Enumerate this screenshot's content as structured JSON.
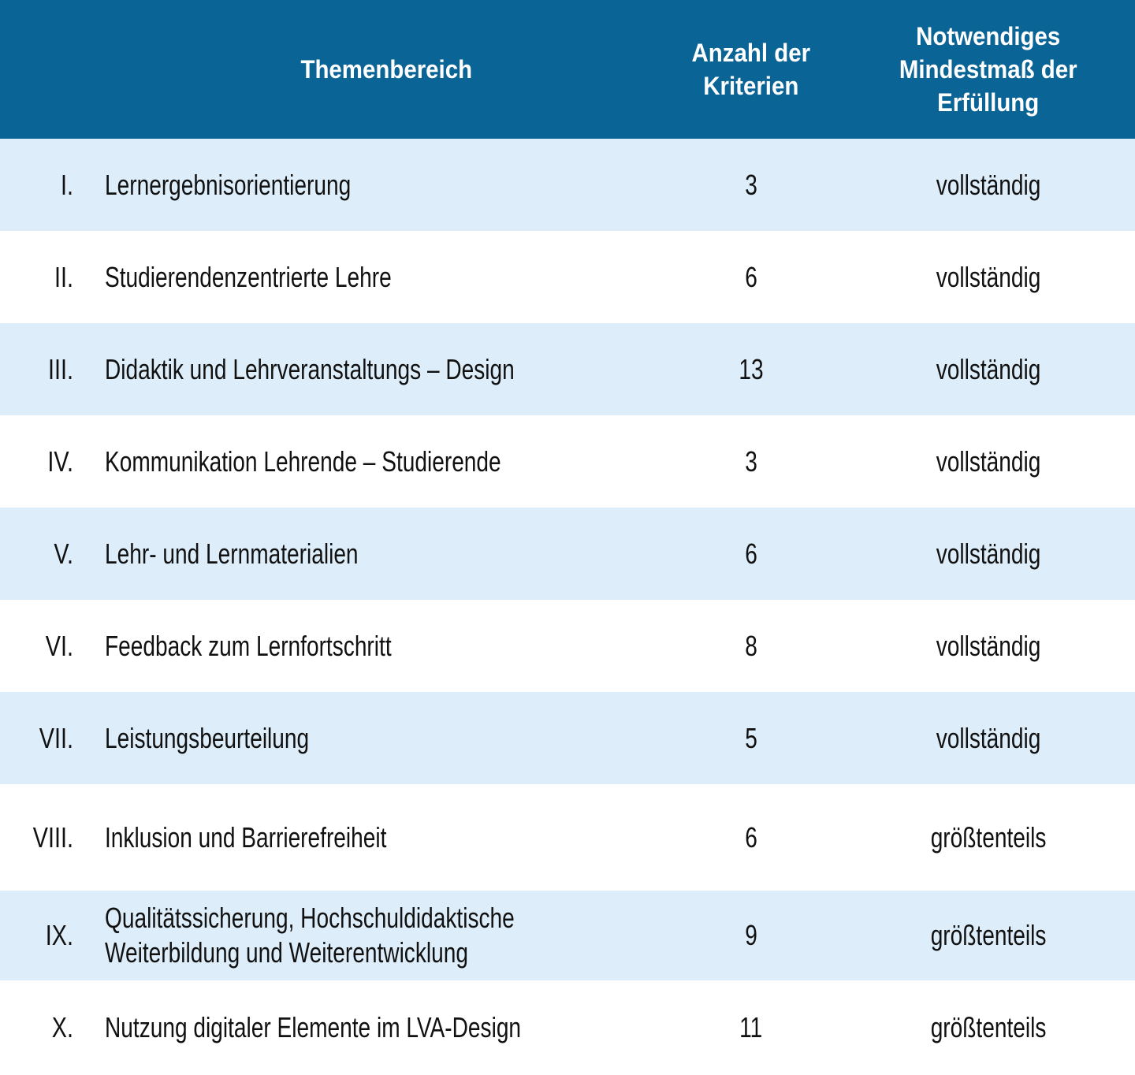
{
  "colors": {
    "header_bg": "#0b6496",
    "row_alt_bg": "#ddeefa",
    "row_bg": "#ffffff",
    "header_fg": "#ffffff",
    "body_fg": "#111111"
  },
  "table": {
    "columns": [
      {
        "label": "Themenbereich"
      },
      {
        "label": "Anzahl der\nKriterien"
      },
      {
        "label": "Notwendiges\nMindestmaß der\nErfüllung"
      }
    ],
    "rows": [
      {
        "numeral": "I.",
        "topic": "Lernergebnisorientierung",
        "criteria_count": "3",
        "min_fulfillment": "vollständig"
      },
      {
        "numeral": "II.",
        "topic": "Studierendenzentrierte Lehre",
        "criteria_count": "6",
        "min_fulfillment": "vollständig"
      },
      {
        "numeral": "III.",
        "topic": "Didaktik und Lehrveranstaltungs – Design",
        "criteria_count": "13",
        "min_fulfillment": "vollständig"
      },
      {
        "numeral": "IV.",
        "topic": "Kommunikation Lehrende – Studierende",
        "criteria_count": "3",
        "min_fulfillment": "vollständig"
      },
      {
        "numeral": "V.",
        "topic": "Lehr- und Lernmaterialien",
        "criteria_count": "6",
        "min_fulfillment": "vollständig"
      },
      {
        "numeral": "VI.",
        "topic": "Feedback zum Lernfortschritt",
        "criteria_count": "8",
        "min_fulfillment": "vollständig"
      },
      {
        "numeral": "VII.",
        "topic": "Leistungsbeurteilung",
        "criteria_count": "5",
        "min_fulfillment": "vollständig"
      },
      {
        "numeral": "VIII.",
        "topic": "Inklusion und Barrierefreiheit",
        "criteria_count": "6",
        "min_fulfillment": "größtenteils"
      },
      {
        "numeral": "IX.",
        "topic": "Qualitätssicherung, Hochschuldidaktische\nWeiterbildung und Weiterentwicklung",
        "criteria_count": "9",
        "min_fulfillment": "größtenteils"
      },
      {
        "numeral": "X.",
        "topic": "Nutzung digitaler Elemente im LVA-Design",
        "criteria_count": "11",
        "min_fulfillment": "größtenteils"
      }
    ]
  }
}
